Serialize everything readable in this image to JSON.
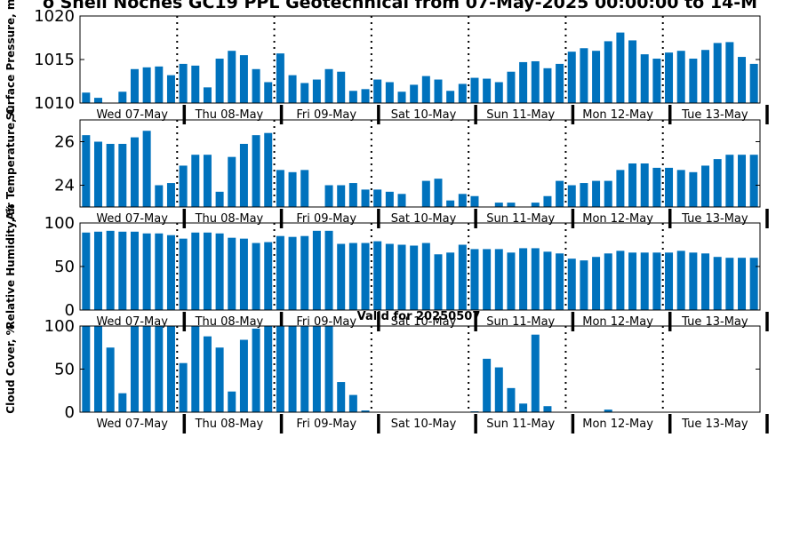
{
  "title": "o Shell Noches   GC19 PPL  Geotechnical from 07-May-2025 00:00:00 to 14-M",
  "valid_label": "Valid for 20250507",
  "colors": {
    "bar": "#0072bd",
    "axis": "#000000",
    "background": "#ffffff",
    "vline": "#000000"
  },
  "day_labels": [
    "Wed 07-May",
    "Thu 08-May",
    "Fri 09-May",
    "Sat 10-May",
    "Sun 11-May",
    "Mon 12-May",
    "Tue 13-May"
  ],
  "chart_data": [
    {
      "type": "bar",
      "ylabel": "Surface Pressure, m",
      "ylim": [
        1010,
        1020
      ],
      "yticks": [
        1010,
        1015,
        1020
      ],
      "values": [
        1011.2,
        1010.6,
        1010.0,
        1011.3,
        1013.9,
        1014.1,
        1014.2,
        1013.2,
        1014.5,
        1014.3,
        1011.8,
        1015.1,
        1016.0,
        1015.5,
        1013.9,
        1012.4,
        1015.7,
        1013.2,
        1012.3,
        1012.7,
        1013.9,
        1013.6,
        1011.4,
        1011.6,
        1012.7,
        1012.4,
        1011.3,
        1012.1,
        1013.1,
        1012.7,
        1011.4,
        1012.2,
        1012.9,
        1012.8,
        1012.4,
        1013.6,
        1014.7,
        1014.8,
        1014.0,
        1014.5,
        1015.9,
        1016.3,
        1016.0,
        1017.1,
        1018.1,
        1017.2,
        1015.6,
        1015.1,
        1015.8,
        1016.0,
        1015.1,
        1016.1,
        1016.9,
        1017.0,
        1015.3,
        1014.5
      ]
    },
    {
      "type": "bar",
      "ylabel": "Air Temperature, C",
      "ylim": [
        23,
        27
      ],
      "yticks": [
        24,
        26
      ],
      "values": [
        26.3,
        26.0,
        25.9,
        25.9,
        26.2,
        26.5,
        24.0,
        24.1,
        24.9,
        25.4,
        25.4,
        23.7,
        25.3,
        25.9,
        26.3,
        26.4,
        24.7,
        24.6,
        24.7,
        22.9,
        24.0,
        24.0,
        24.1,
        23.8,
        23.8,
        23.7,
        23.6,
        22.9,
        24.2,
        24.3,
        23.3,
        23.6,
        23.5,
        22.9,
        23.2,
        23.2,
        22.9,
        23.2,
        23.5,
        24.2,
        24.0,
        24.1,
        24.2,
        24.2,
        24.7,
        25.0,
        25.0,
        24.8,
        24.8,
        24.7,
        24.6,
        24.9,
        25.2,
        25.4,
        25.4,
        25.4
      ]
    },
    {
      "type": "bar",
      "ylabel": "Relative Humidity, %",
      "ylim": [
        0,
        100
      ],
      "yticks": [
        0,
        50,
        100
      ],
      "values": [
        89,
        90,
        91,
        90,
        90,
        88,
        88,
        86,
        82,
        89,
        89,
        88,
        83,
        82,
        77,
        78,
        85,
        84,
        85,
        91,
        91,
        76,
        77,
        77,
        79,
        76,
        75,
        74,
        77,
        64,
        66,
        75,
        70,
        70,
        70,
        66,
        71,
        71,
        67,
        65,
        59,
        57,
        61,
        65,
        68,
        66,
        66,
        66,
        66,
        68,
        66,
        65,
        61,
        60,
        60,
        60
      ]
    },
    {
      "type": "bar",
      "ylabel": "Cloud Cover, %",
      "ylim": [
        0,
        100
      ],
      "yticks": [
        0,
        50,
        100
      ],
      "values": [
        100,
        100,
        75,
        22,
        100,
        100,
        100,
        100,
        57,
        100,
        88,
        75,
        24,
        84,
        97,
        100,
        100,
        100,
        100,
        100,
        100,
        35,
        20,
        2,
        0,
        0,
        0,
        0,
        0,
        0,
        0,
        0,
        1,
        62,
        52,
        28,
        10,
        90,
        7,
        0,
        0,
        0,
        0,
        3,
        0,
        0,
        0,
        0,
        0,
        0,
        0,
        0,
        0,
        0,
        0,
        0
      ]
    }
  ]
}
